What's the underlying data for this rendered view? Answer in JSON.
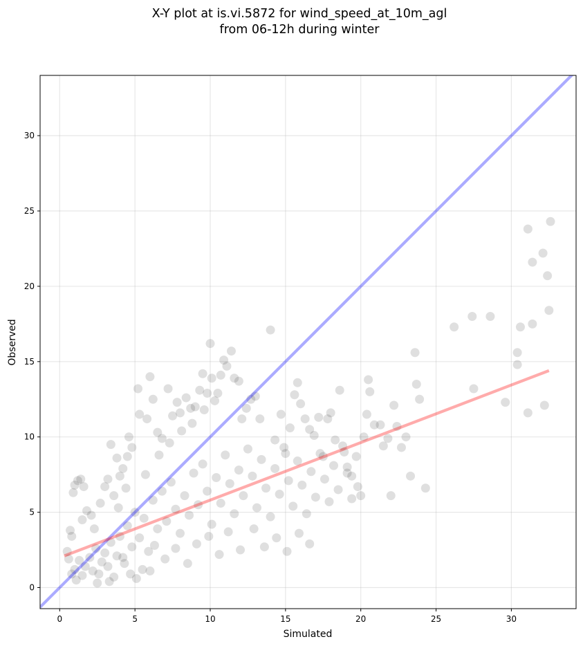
{
  "chart_data": {
    "type": "scatter",
    "title_lines": [
      "X-Y plot at is.vi.5872 for wind_speed_at_10m_agl",
      "from 06-12h during winter"
    ],
    "xlabel": "Simulated",
    "ylabel": "Observed",
    "xlim": [
      -1.3,
      34.3
    ],
    "ylim": [
      -1.4,
      34.0
    ],
    "xticks": [
      0,
      5,
      10,
      15,
      20,
      25,
      30
    ],
    "yticks": [
      0,
      5,
      10,
      15,
      20,
      25,
      30
    ],
    "grid": true,
    "point_color": "#000000",
    "point_opacity": 0.09,
    "series": [
      {
        "kind": "scatter",
        "points": [
          [
            0.5,
            2.4
          ],
          [
            0.6,
            1.9
          ],
          [
            0.7,
            3.8
          ],
          [
            0.8,
            3.4
          ],
          [
            0.9,
            6.3
          ],
          [
            1.0,
            6.8
          ],
          [
            1.2,
            7.1
          ],
          [
            1.4,
            7.2
          ],
          [
            1.5,
            4.5
          ],
          [
            1.6,
            6.7
          ],
          [
            1.8,
            5.1
          ],
          [
            2.1,
            4.8
          ],
          [
            2.3,
            3.9
          ],
          [
            2.7,
            5.6
          ],
          [
            3.0,
            6.7
          ],
          [
            3.2,
            7.2
          ],
          [
            3.4,
            9.5
          ],
          [
            3.6,
            6.1
          ],
          [
            3.8,
            8.6
          ],
          [
            4.0,
            7.4
          ],
          [
            4.2,
            7.9
          ],
          [
            4.5,
            8.7
          ],
          [
            4.6,
            10.0
          ],
          [
            4.8,
            9.3
          ],
          [
            5.2,
            13.2
          ],
          [
            5.3,
            11.5
          ],
          [
            5.8,
            11.2
          ],
          [
            6.0,
            14.0
          ],
          [
            6.2,
            12.5
          ],
          [
            6.5,
            10.3
          ],
          [
            6.8,
            9.9
          ],
          [
            7.2,
            13.2
          ],
          [
            7.5,
            11.4
          ],
          [
            7.8,
            12.3
          ],
          [
            8.0,
            11.6
          ],
          [
            8.4,
            12.6
          ],
          [
            8.7,
            11.9
          ],
          [
            9.0,
            12.0
          ],
          [
            9.3,
            13.1
          ],
          [
            9.5,
            14.2
          ],
          [
            9.8,
            12.9
          ],
          [
            10.0,
            16.2
          ],
          [
            10.1,
            13.9
          ],
          [
            10.3,
            12.4
          ],
          [
            10.5,
            12.9
          ],
          [
            10.7,
            14.1
          ],
          [
            10.9,
            15.1
          ],
          [
            11.1,
            14.7
          ],
          [
            11.4,
            15.7
          ],
          [
            11.6,
            13.9
          ],
          [
            11.9,
            13.7
          ],
          [
            12.1,
            11.2
          ],
          [
            12.4,
            11.9
          ],
          [
            12.7,
            12.5
          ],
          [
            13.0,
            12.7
          ],
          [
            13.3,
            11.2
          ],
          [
            14.0,
            17.1
          ],
          [
            14.3,
            9.8
          ],
          [
            14.7,
            11.5
          ],
          [
            15.0,
            8.9
          ],
          [
            15.3,
            10.6
          ],
          [
            15.6,
            12.8
          ],
          [
            15.8,
            13.6
          ],
          [
            16.0,
            12.2
          ],
          [
            16.3,
            11.2
          ],
          [
            16.6,
            10.5
          ],
          [
            16.9,
            10.1
          ],
          [
            17.2,
            11.3
          ],
          [
            17.5,
            8.7
          ],
          [
            17.8,
            11.2
          ],
          [
            18.0,
            11.6
          ],
          [
            18.3,
            9.8
          ],
          [
            18.6,
            13.1
          ],
          [
            18.9,
            9.0
          ],
          [
            19.1,
            8.0
          ],
          [
            19.4,
            7.4
          ],
          [
            19.8,
            6.7
          ],
          [
            20.0,
            6.1
          ],
          [
            20.2,
            10.0
          ],
          [
            20.4,
            11.5
          ],
          [
            20.5,
            13.8
          ],
          [
            20.6,
            13.0
          ],
          [
            20.9,
            10.8
          ],
          [
            21.3,
            10.8
          ],
          [
            21.5,
            9.4
          ],
          [
            21.8,
            9.9
          ],
          [
            22.0,
            6.1
          ],
          [
            22.2,
            12.1
          ],
          [
            22.4,
            10.7
          ],
          [
            22.7,
            9.3
          ],
          [
            23.0,
            10.0
          ],
          [
            23.3,
            7.4
          ],
          [
            23.6,
            15.6
          ],
          [
            23.7,
            13.5
          ],
          [
            23.9,
            12.5
          ],
          [
            24.3,
            6.6
          ],
          [
            26.2,
            17.3
          ],
          [
            27.4,
            18.0
          ],
          [
            27.5,
            13.2
          ],
          [
            28.6,
            18.0
          ],
          [
            29.6,
            12.3
          ],
          [
            30.4,
            15.6
          ],
          [
            30.4,
            14.8
          ],
          [
            30.6,
            17.3
          ],
          [
            31.1,
            23.8
          ],
          [
            31.1,
            11.6
          ],
          [
            31.4,
            17.5
          ],
          [
            31.4,
            21.6
          ],
          [
            32.1,
            22.2
          ],
          [
            32.2,
            12.1
          ],
          [
            32.4,
            20.7
          ],
          [
            32.5,
            18.4
          ],
          [
            32.6,
            24.3
          ],
          [
            1.0,
            1.2
          ],
          [
            1.3,
            1.8
          ],
          [
            1.5,
            0.8
          ],
          [
            1.7,
            1.4
          ],
          [
            2.0,
            2.0
          ],
          [
            2.2,
            1.1
          ],
          [
            2.4,
            2.6
          ],
          [
            2.6,
            0.9
          ],
          [
            2.8,
            1.7
          ],
          [
            3.0,
            2.3
          ],
          [
            3.2,
            1.4
          ],
          [
            3.4,
            3.0
          ],
          [
            3.6,
            0.7
          ],
          [
            3.8,
            2.1
          ],
          [
            4.0,
            3.4
          ],
          [
            4.3,
            1.6
          ],
          [
            4.5,
            4.1
          ],
          [
            4.8,
            2.7
          ],
          [
            5.0,
            5.0
          ],
          [
            5.3,
            3.3
          ],
          [
            5.6,
            4.6
          ],
          [
            5.9,
            2.4
          ],
          [
            6.2,
            5.8
          ],
          [
            6.5,
            3.9
          ],
          [
            6.8,
            6.4
          ],
          [
            7.1,
            4.4
          ],
          [
            7.4,
            7.0
          ],
          [
            7.7,
            5.2
          ],
          [
            8.0,
            3.6
          ],
          [
            8.3,
            6.1
          ],
          [
            8.6,
            4.8
          ],
          [
            8.9,
            7.6
          ],
          [
            9.2,
            5.5
          ],
          [
            9.5,
            8.2
          ],
          [
            9.8,
            6.4
          ],
          [
            10.1,
            4.2
          ],
          [
            10.4,
            7.3
          ],
          [
            10.7,
            5.6
          ],
          [
            11.0,
            8.8
          ],
          [
            11.3,
            6.9
          ],
          [
            11.6,
            4.9
          ],
          [
            11.9,
            7.8
          ],
          [
            12.2,
            6.1
          ],
          [
            12.5,
            9.2
          ],
          [
            12.8,
            7.4
          ],
          [
            13.1,
            5.3
          ],
          [
            13.4,
            8.5
          ],
          [
            13.7,
            6.6
          ],
          [
            14.0,
            4.7
          ],
          [
            14.3,
            7.9
          ],
          [
            14.6,
            6.2
          ],
          [
            14.9,
            9.3
          ],
          [
            15.2,
            7.1
          ],
          [
            15.5,
            5.4
          ],
          [
            15.8,
            8.4
          ],
          [
            16.1,
            6.8
          ],
          [
            16.4,
            4.9
          ],
          [
            16.7,
            7.7
          ],
          [
            17.0,
            6.0
          ],
          [
            17.3,
            8.9
          ],
          [
            17.6,
            7.2
          ],
          [
            17.9,
            5.7
          ],
          [
            18.2,
            8.1
          ],
          [
            18.5,
            6.5
          ],
          [
            18.8,
            9.4
          ],
          [
            19.1,
            7.6
          ],
          [
            19.4,
            5.9
          ],
          [
            19.7,
            8.7
          ],
          [
            4.2,
            2.0
          ],
          [
            5.5,
            1.2
          ],
          [
            6.3,
            2.8
          ],
          [
            7.0,
            1.9
          ],
          [
            7.7,
            2.6
          ],
          [
            8.5,
            1.6
          ],
          [
            9.1,
            2.9
          ],
          [
            9.9,
            3.4
          ],
          [
            10.6,
            2.2
          ],
          [
            11.2,
            3.7
          ],
          [
            12.0,
            2.5
          ],
          [
            12.9,
            3.9
          ],
          [
            13.6,
            2.7
          ],
          [
            14.4,
            3.3
          ],
          [
            15.1,
            2.4
          ],
          [
            15.9,
            3.6
          ],
          [
            16.6,
            2.9
          ],
          [
            3.3,
            0.4
          ],
          [
            4.7,
            0.9
          ],
          [
            5.1,
            0.6
          ],
          [
            6.0,
            1.1
          ],
          [
            0.8,
            0.9
          ],
          [
            1.1,
            0.5
          ],
          [
            2.5,
            0.3
          ],
          [
            3.9,
            5.3
          ],
          [
            4.4,
            6.6
          ],
          [
            5.7,
            7.5
          ],
          [
            6.6,
            8.8
          ],
          [
            7.3,
            9.6
          ],
          [
            8.1,
            10.4
          ],
          [
            8.8,
            10.9
          ],
          [
            9.6,
            11.8
          ]
        ]
      }
    ],
    "lines": [
      {
        "kind": "line",
        "color": "#0000ff",
        "opacity": 0.33,
        "points": [
          [
            -1.3,
            -1.3
          ],
          [
            34.3,
            34.3
          ]
        ]
      },
      {
        "kind": "line",
        "color": "#ff0000",
        "opacity": 0.33,
        "points": [
          [
            0.3,
            2.1
          ],
          [
            32.5,
            14.4
          ]
        ]
      }
    ]
  }
}
